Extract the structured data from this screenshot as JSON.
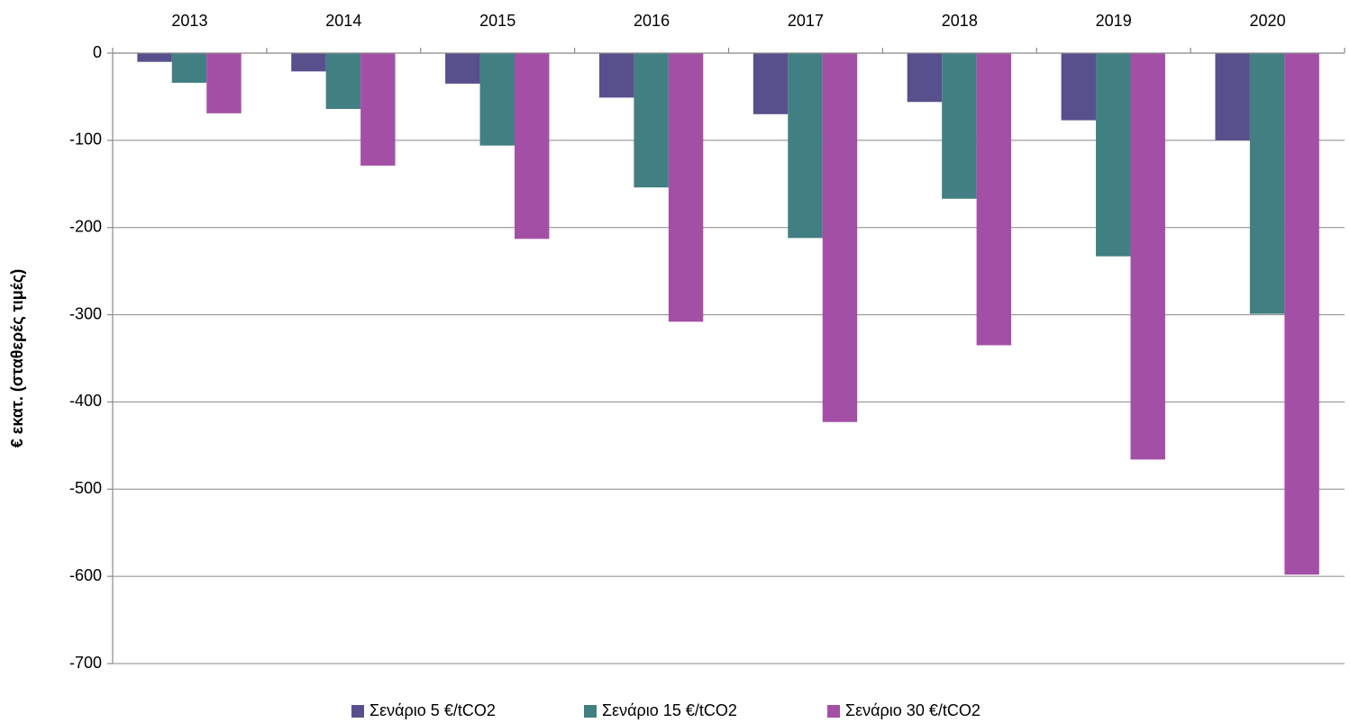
{
  "chart_data": {
    "type": "bar",
    "y_label": "€ εκατ. (σταθερές τιμές)",
    "categories": [
      "2013",
      "2014",
      "2015",
      "2016",
      "2017",
      "2018",
      "2019",
      "2020"
    ],
    "series": [
      {
        "name": "Σενάριο 5 €/tCO2",
        "color": "#58508c",
        "values": [
          -10,
          -21,
          -35,
          -51,
          -70,
          -56,
          -77,
          -100
        ]
      },
      {
        "name": "Σενάριο 15 €/tCO2",
        "color": "#417f83",
        "values": [
          -34,
          -64,
          -106,
          -154,
          -212,
          -167,
          -233,
          -299
        ]
      },
      {
        "name": "Σενάριο 30 €/tCO2",
        "color": "#a44fa6",
        "values": [
          -69,
          -129,
          -213,
          -308,
          -423,
          -335,
          -466,
          -598
        ]
      }
    ],
    "ylim": [
      -700,
      0
    ],
    "yticks": [
      0,
      -100,
      -200,
      -300,
      -400,
      -500,
      -600,
      -700
    ],
    "grid": true,
    "legend": "bottom"
  }
}
